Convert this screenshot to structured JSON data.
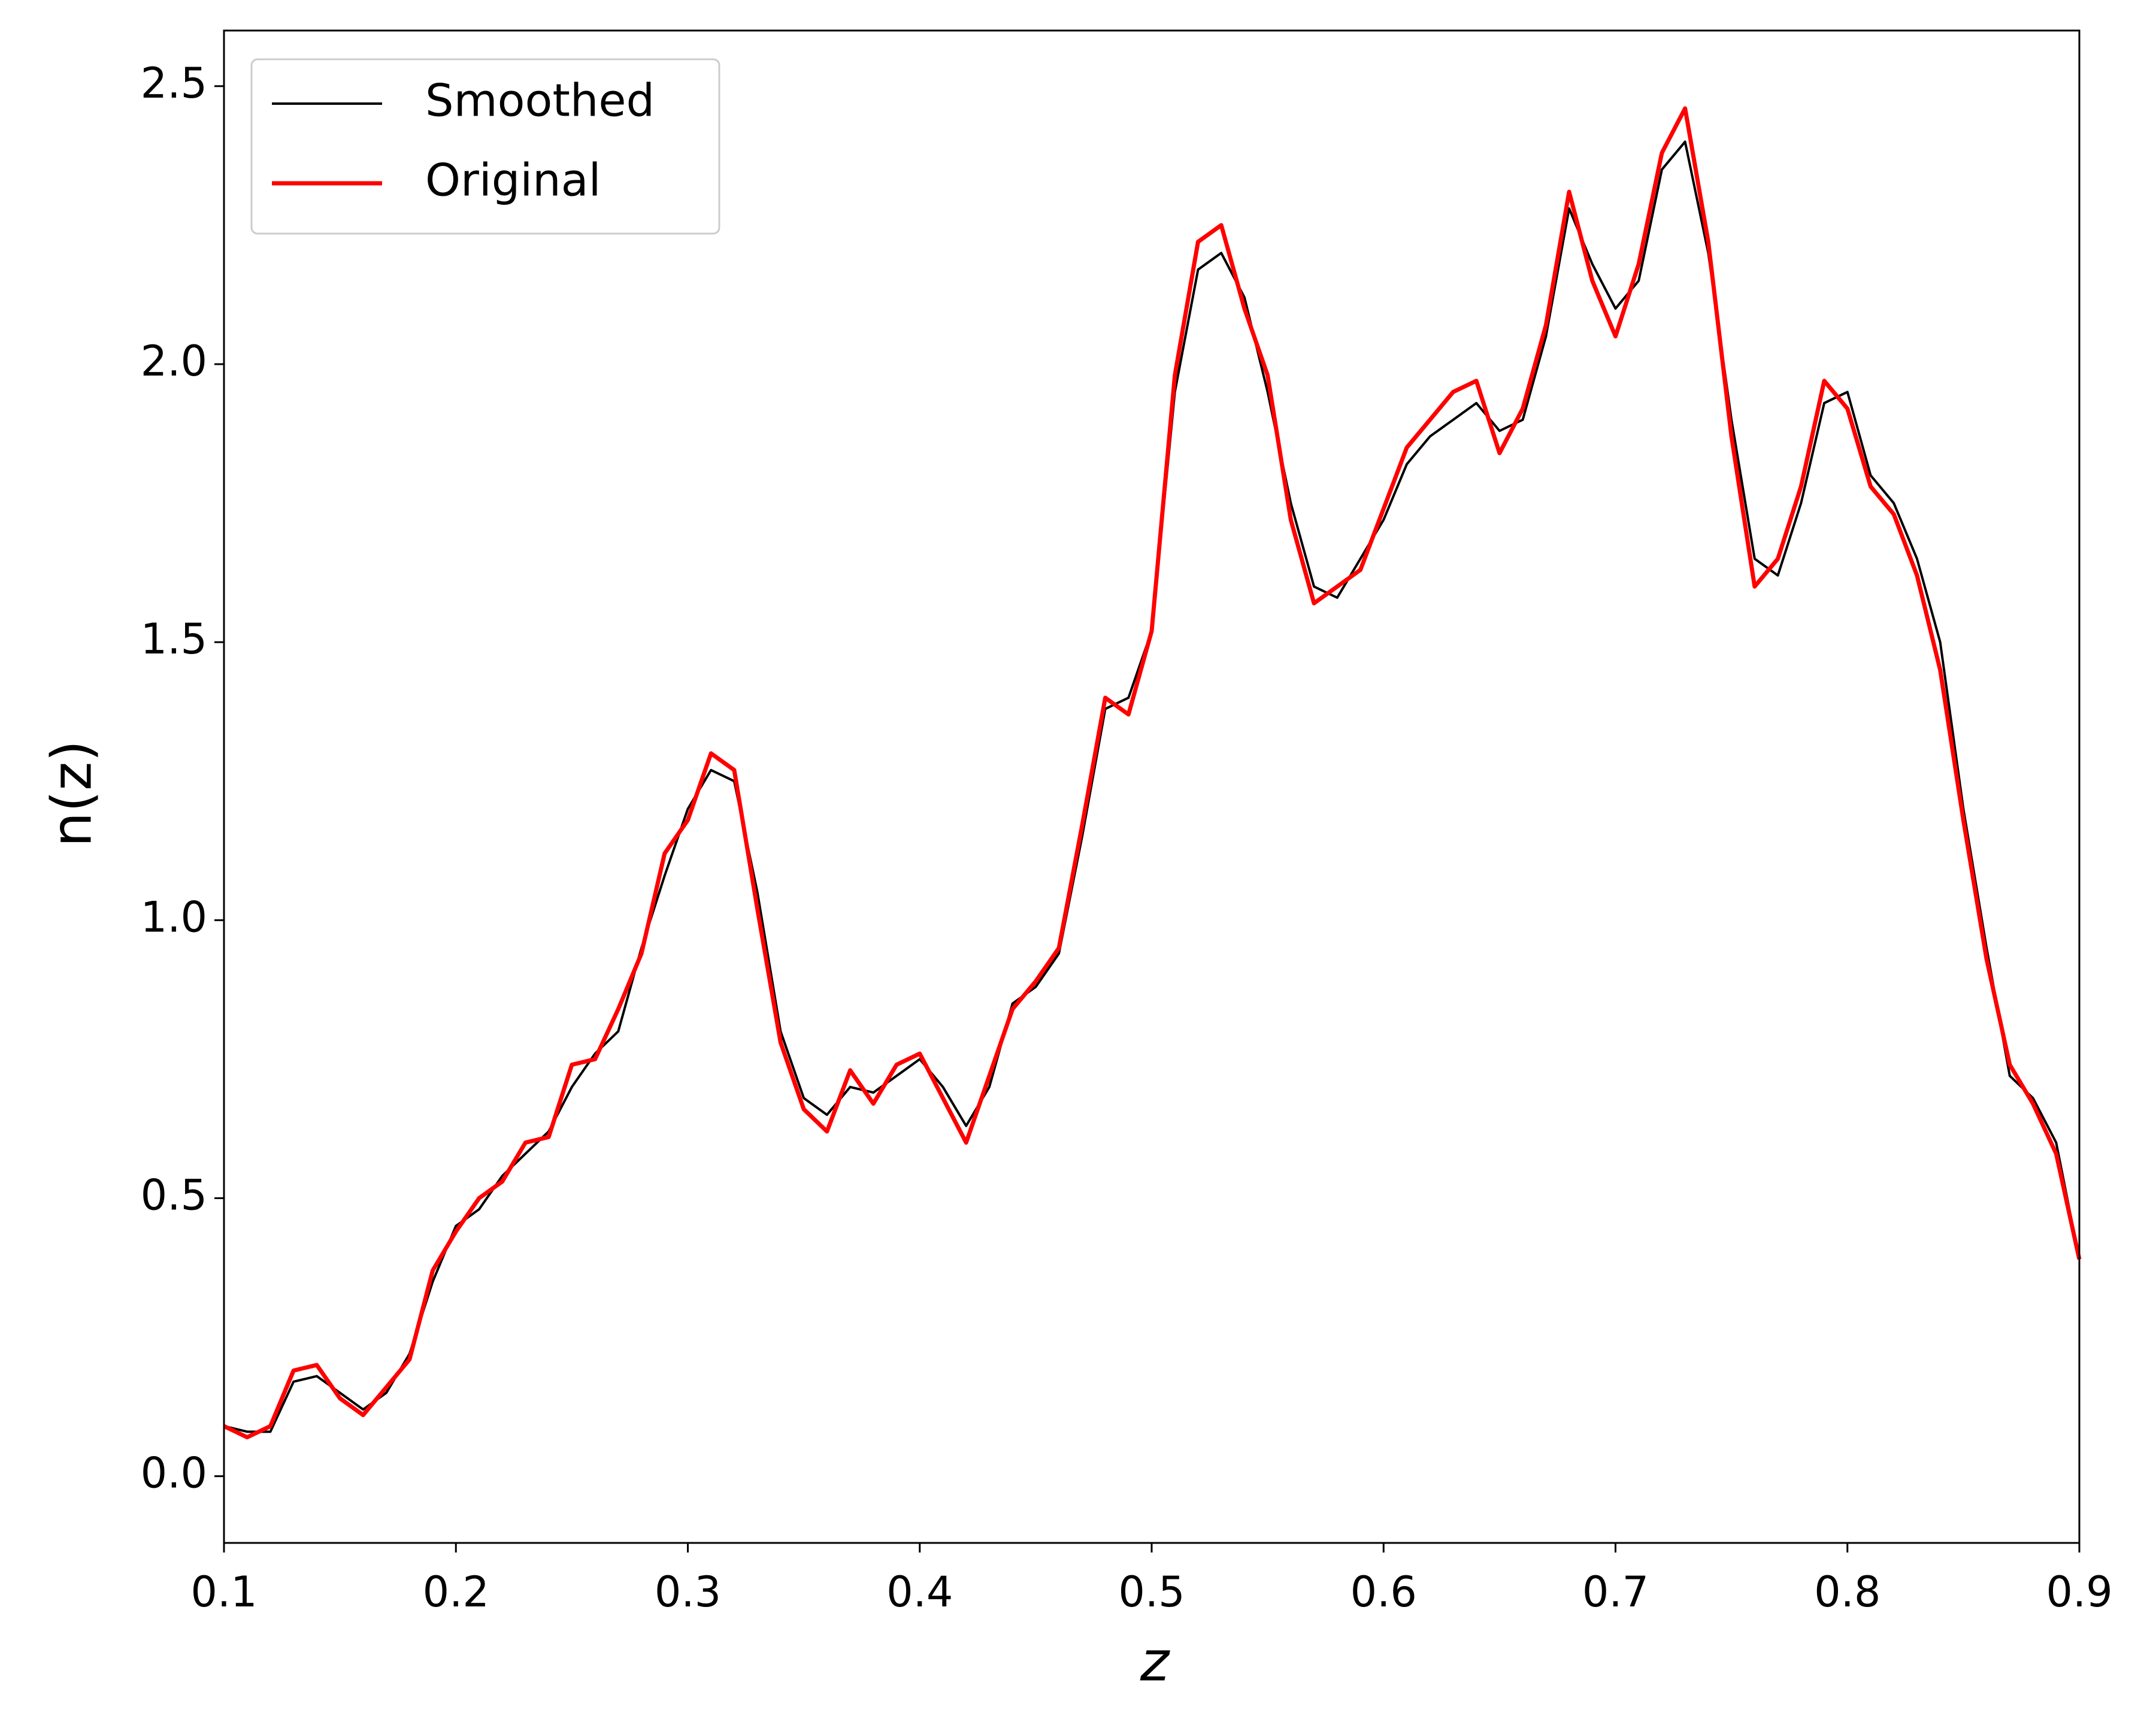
{
  "chart_data": {
    "type": "line",
    "xlabel": "z",
    "ylabel": "n(z)",
    "x": [
      0.1,
      0.11,
      0.12,
      0.13,
      0.14,
      0.15,
      0.16,
      0.17,
      0.18,
      0.19,
      0.2,
      0.21,
      0.22,
      0.23,
      0.24,
      0.25,
      0.26,
      0.27,
      0.28,
      0.29,
      0.3,
      0.31,
      0.32,
      0.33,
      0.34,
      0.35,
      0.36,
      0.37,
      0.38,
      0.39,
      0.4,
      0.41,
      0.42,
      0.43,
      0.44,
      0.45,
      0.46,
      0.47,
      0.48,
      0.49,
      0.5,
      0.51,
      0.52,
      0.53,
      0.54,
      0.55,
      0.56,
      0.57,
      0.58,
      0.59,
      0.6,
      0.61,
      0.62,
      0.63,
      0.64,
      0.65,
      0.66,
      0.67,
      0.68,
      0.69,
      0.7,
      0.71,
      0.72,
      0.73,
      0.74,
      0.75,
      0.76,
      0.77,
      0.78,
      0.79,
      0.8,
      0.81,
      0.82,
      0.83,
      0.84,
      0.85,
      0.86,
      0.87,
      0.88,
      0.89,
      0.9
    ],
    "series": [
      {
        "name": "Smoothed",
        "color": "#000000",
        "values": [
          0.09,
          0.08,
          0.08,
          0.17,
          0.18,
          0.15,
          0.12,
          0.15,
          0.22,
          0.35,
          0.45,
          0.48,
          0.54,
          0.58,
          0.62,
          0.7,
          0.76,
          0.8,
          0.95,
          1.08,
          1.2,
          1.27,
          1.25,
          1.05,
          0.8,
          0.68,
          0.65,
          0.7,
          0.69,
          0.72,
          0.75,
          0.7,
          0.63,
          0.7,
          0.85,
          0.88,
          0.94,
          1.15,
          1.38,
          1.4,
          1.52,
          1.95,
          2.17,
          2.2,
          2.12,
          1.95,
          1.75,
          1.6,
          1.58,
          1.65,
          1.72,
          1.82,
          1.87,
          1.9,
          1.93,
          1.88,
          1.9,
          2.05,
          2.28,
          2.18,
          2.1,
          2.15,
          2.35,
          2.4,
          2.2,
          1.9,
          1.65,
          1.62,
          1.75,
          1.93,
          1.95,
          1.8,
          1.75,
          1.65,
          1.5,
          1.2,
          0.95,
          0.72,
          0.68,
          0.6,
          0.39
        ]
      },
      {
        "name": "Original",
        "color": "#ff0000",
        "values": [
          0.09,
          0.07,
          0.09,
          0.19,
          0.2,
          0.14,
          0.11,
          0.16,
          0.21,
          0.37,
          0.44,
          0.5,
          0.53,
          0.6,
          0.61,
          0.74,
          0.75,
          0.84,
          0.94,
          1.12,
          1.18,
          1.3,
          1.27,
          1.02,
          0.78,
          0.66,
          0.62,
          0.73,
          0.67,
          0.74,
          0.76,
          0.68,
          0.6,
          0.72,
          0.84,
          0.89,
          0.95,
          1.17,
          1.4,
          1.37,
          1.52,
          1.98,
          2.22,
          2.25,
          2.1,
          1.98,
          1.72,
          1.57,
          1.6,
          1.63,
          1.74,
          1.85,
          1.9,
          1.95,
          1.97,
          1.84,
          1.92,
          2.07,
          2.31,
          2.15,
          2.05,
          2.18,
          2.38,
          2.46,
          2.22,
          1.87,
          1.6,
          1.65,
          1.78,
          1.97,
          1.92,
          1.78,
          1.73,
          1.62,
          1.45,
          1.18,
          0.93,
          0.74,
          0.67,
          0.58,
          0.39
        ]
      }
    ],
    "xlim": [
      0.1,
      0.9
    ],
    "ylim": [
      -0.12,
      2.6
    ],
    "xticks": [
      0.1,
      0.2,
      0.3,
      0.4,
      0.5,
      0.6,
      0.7,
      0.8,
      0.9
    ],
    "yticks": [
      {
        "value": 0,
        "label": "0.0"
      },
      0.5,
      {
        "value": 1,
        "label": "1.0"
      },
      1.5,
      {
        "value": 2,
        "label": "2.0"
      },
      2.5
    ],
    "legend": "upper left",
    "grid": false
  }
}
